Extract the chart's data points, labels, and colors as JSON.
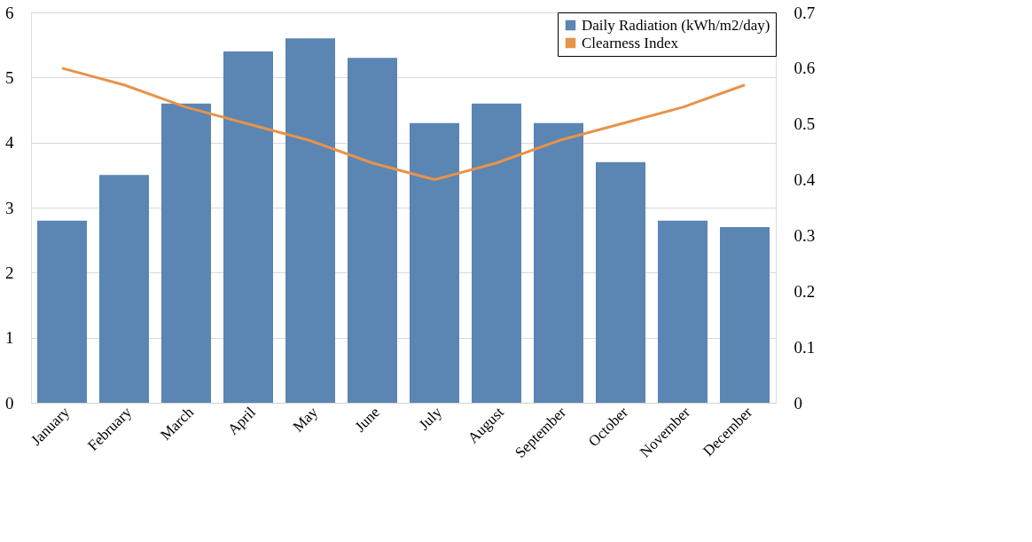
{
  "chart_data": {
    "type": "bar",
    "categories": [
      "January",
      "February",
      "March",
      "April",
      "May",
      "June",
      "July",
      "August",
      "September",
      "October",
      "November",
      "December"
    ],
    "series": [
      {
        "name": "Daily Radiation (kWh/m2/day)",
        "color": "#5b85b3",
        "values": [
          2.8,
          3.5,
          4.6,
          5.4,
          5.6,
          5.3,
          4.3,
          4.6,
          4.3,
          3.7,
          2.8,
          2.7
        ]
      },
      {
        "name": "Clearness Index",
        "type": "line",
        "axis": "y2",
        "color": "#e8934a",
        "values": [
          0.6,
          0.57,
          0.53,
          0.5,
          0.47,
          0.43,
          0.4,
          0.43,
          0.47,
          0.5,
          0.53,
          0.57
        ]
      }
    ],
    "ylim": [
      0,
      6
    ],
    "yticks": [
      0,
      1,
      2,
      3,
      4,
      5,
      6
    ],
    "y2lim": [
      0,
      0.7
    ],
    "y2ticks": [
      0,
      0.1,
      0.2,
      0.3,
      0.4,
      0.5,
      0.6,
      0.7
    ],
    "grid": "y",
    "legend": "top right"
  }
}
